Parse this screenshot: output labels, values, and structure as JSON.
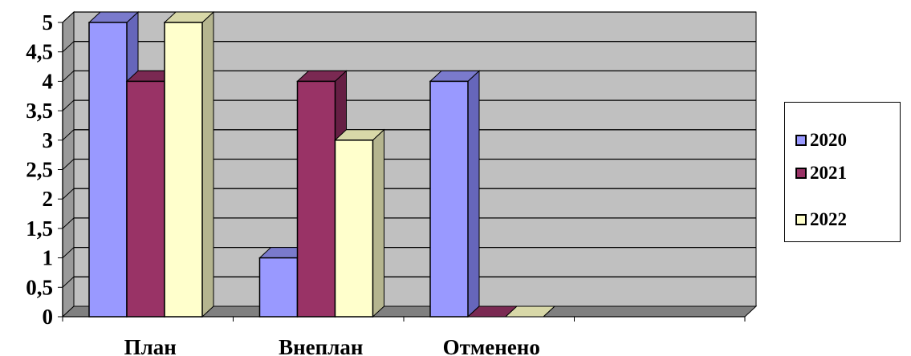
{
  "chart_data": {
    "type": "bar",
    "categories": [
      "План",
      "Внеплан",
      "Отменено",
      ""
    ],
    "series": [
      {
        "name": "2020",
        "values": [
          5,
          1,
          4,
          0
        ]
      },
      {
        "name": "2021",
        "values": [
          4,
          4,
          0,
          0
        ]
      },
      {
        "name": "2022",
        "values": [
          5,
          3,
          0,
          0
        ]
      }
    ],
    "title": "",
    "xlabel": "",
    "ylabel": "",
    "ylim": [
      0,
      5
    ],
    "yticks": [
      "0",
      "0,5",
      "1",
      "1,5",
      "2",
      "2,5",
      "3",
      "3,5",
      "4",
      "4,5",
      "5"
    ],
    "grid": true,
    "legend_position": "right",
    "three_d": true,
    "colors": {
      "series": [
        "#9999ff",
        "#993366",
        "#ffffcc"
      ],
      "series_side": [
        "#6666bb",
        "#661f44",
        "#b5b58f"
      ],
      "series_top": [
        "#7a7acc",
        "#7a2952",
        "#d8d8a8"
      ],
      "plot_wall": "#c0c0c0",
      "plot_floor": "#808080",
      "gridline": "#000000"
    }
  },
  "legend": {
    "items": [
      {
        "label": "2020",
        "color": "#9999ff"
      },
      {
        "label": "2021",
        "color": "#993366"
      },
      {
        "label": "2022",
        "color": "#ffffcc"
      }
    ]
  }
}
